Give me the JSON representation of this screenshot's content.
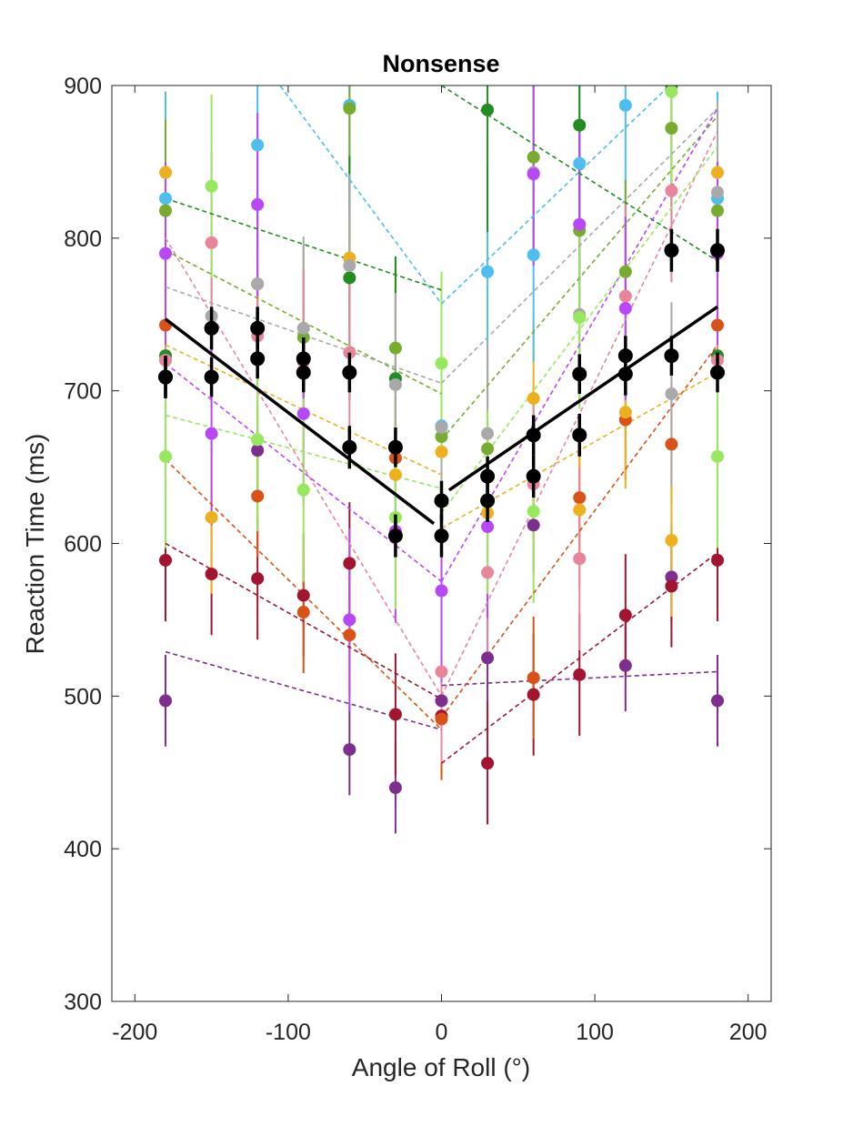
{
  "chart_data": {
    "type": "scatter",
    "title": "Nonsense",
    "xlabel": "Angle of Roll (°)",
    "ylabel": "Reaction Time (ms)",
    "xlim": [
      -215,
      215
    ],
    "ylim": [
      300,
      900
    ],
    "xticks": [
      -200,
      -100,
      0,
      100,
      200
    ],
    "yticks": [
      300,
      400,
      500,
      600,
      700,
      800,
      900
    ],
    "xtick_labels": [
      "-200",
      "-100",
      "0",
      "100",
      "200"
    ],
    "ytick_labels": [
      "300",
      "400",
      "500",
      "600",
      "700",
      "800",
      "900"
    ],
    "x": [
      -180,
      -150,
      -120,
      -90,
      -60,
      -30,
      0,
      30,
      60,
      90,
      120,
      150,
      180
    ],
    "grid": false,
    "legend": "none",
    "series": [
      {
        "color": "#000000",
        "kind": "mean",
        "y": [
          709,
          709,
          721,
          712,
          712,
          663,
          628,
          644,
          671,
          711,
          723,
          723,
          712
        ],
        "err": 13,
        "fit_left": [
          [
            -180,
            747
          ],
          [
            -5,
            613
          ]
        ],
        "fit_right": [
          [
            5,
            635
          ],
          [
            180,
            755
          ]
        ]
      },
      {
        "color": "#000000",
        "kind": "mean",
        "y": [
          709,
          741,
          741,
          721,
          663,
          605,
          605,
          628,
          644,
          671,
          711,
          792,
          792
        ],
        "err": 14
      },
      {
        "color": "#7E2F8E",
        "y": [
          497,
          null,
          661,
          null,
          465,
          440,
          497,
          525,
          612,
          null,
          520,
          578,
          497
        ],
        "err": 30,
        "fit_left": [
          [
            -180,
            529
          ],
          [
            0,
            478
          ]
        ],
        "fit_right": [
          [
            0,
            507
          ],
          [
            180,
            516
          ]
        ]
      },
      {
        "color": "#A2142F",
        "y": [
          589,
          580,
          577,
          566,
          587,
          488,
          487,
          456,
          501,
          514,
          553,
          572,
          589
        ],
        "err": 40,
        "fit_left": [
          [
            -180,
            600
          ],
          [
            0,
            498
          ]
        ],
        "fit_right": [
          [
            0,
            456
          ],
          [
            180,
            594
          ]
        ]
      },
      {
        "color": "#D95319",
        "y": [
          743,
          null,
          631,
          555,
          540,
          656,
          485,
          null,
          512,
          630,
          681,
          665,
          743
        ],
        "err": 40,
        "fit_left": [
          [
            -180,
            655
          ],
          [
            0,
            478
          ]
        ],
        "fit_right": [
          [
            0,
            486
          ],
          [
            180,
            730
          ]
        ]
      },
      {
        "color": "#EDB120",
        "y": [
          843,
          617,
          null,
          null,
          787,
          645,
          660,
          620,
          695,
          622,
          686,
          602,
          843
        ],
        "err": 50,
        "fit_left": [
          [
            -180,
            730
          ],
          [
            0,
            645
          ]
        ],
        "fit_right": [
          [
            0,
            610
          ],
          [
            180,
            712
          ]
        ]
      },
      {
        "color": "#4DBEEE",
        "y": [
          826,
          null,
          861,
          null,
          887,
          null,
          677,
          778,
          789,
          849,
          887,
          null,
          826
        ],
        "err": 70,
        "fit_left": [
          [
            -120,
            920
          ],
          [
            0,
            757
          ]
        ],
        "fit_right": [
          [
            0,
            757
          ],
          [
            180,
            930
          ]
        ]
      },
      {
        "color": "#77AC30",
        "y": [
          818,
          null,
          770,
          735,
          885,
          728,
          670,
          662,
          853,
          805,
          778,
          872,
          818
        ],
        "err": 60,
        "fit_left": [
          [
            -180,
            792
          ],
          [
            0,
            698
          ]
        ],
        "fit_right": [
          [
            0,
            668
          ],
          [
            180,
            880
          ]
        ]
      },
      {
        "color": "#228B22",
        "y": [
          723,
          null,
          null,
          null,
          774,
          708,
          null,
          884,
          null,
          874,
          null,
          900,
          723
        ],
        "err": 80,
        "fit_left": [
          [
            -180,
            826
          ],
          [
            0,
            766
          ]
        ],
        "fit_right": [
          [
            0,
            900
          ],
          [
            180,
            785
          ]
        ]
      },
      {
        "color": "#A9A9A9",
        "y": [
          720,
          749,
          770,
          741,
          782,
          704,
          676,
          672,
          843,
          750,
          null,
          698,
          830
        ],
        "err": 60,
        "fit_left": [
          [
            -180,
            768
          ],
          [
            0,
            705
          ]
        ],
        "fit_right": [
          [
            0,
            705
          ],
          [
            180,
            885
          ]
        ]
      },
      {
        "color": "#E8859A",
        "y": [
          720,
          797,
          736,
          719,
          725,
          null,
          516,
          581,
          639,
          590,
          762,
          831,
          720
        ],
        "err": 60,
        "fit_left": [
          [
            -180,
            800
          ],
          [
            0,
            500
          ]
        ],
        "fit_right": [
          [
            0,
            500
          ],
          [
            180,
            870
          ]
        ]
      },
      {
        "color": "#B847F5",
        "y": [
          790,
          672,
          822,
          685,
          550,
          608,
          569,
          611,
          842,
          809,
          754,
          null,
          790
        ],
        "err": 60,
        "fit_left": [
          [
            -180,
            718
          ],
          [
            0,
            575
          ]
        ],
        "fit_right": [
          [
            0,
            575
          ],
          [
            180,
            885
          ]
        ]
      },
      {
        "color": "#97E85F",
        "y": [
          657,
          834,
          668,
          635,
          null,
          617,
          718,
          627,
          621,
          748,
          null,
          896,
          657
        ],
        "err": 60,
        "fit_left": [
          [
            -180,
            684
          ],
          [
            0,
            636
          ]
        ],
        "fit_right": [
          [
            0,
            620
          ],
          [
            180,
            860
          ]
        ]
      }
    ]
  }
}
